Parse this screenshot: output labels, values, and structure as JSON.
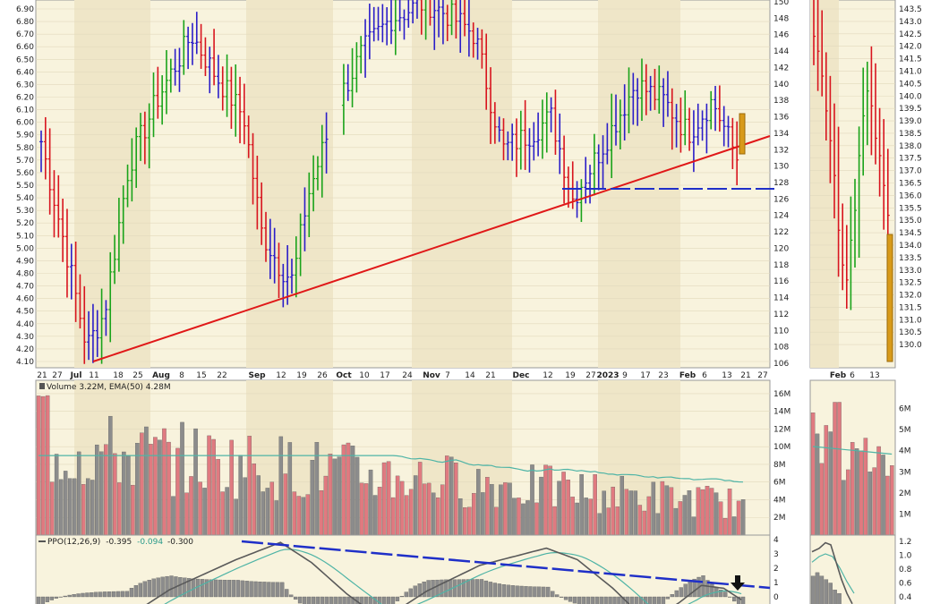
{
  "chart_data": [
    {
      "type": "ohlc",
      "panel": "price",
      "left_axis_ticks": [
        "6.90",
        "6.80",
        "6.70",
        "6.60",
        "6.50",
        "6.40",
        "6.30",
        "6.20",
        "6.10",
        "6.00",
        "5.90",
        "5.80",
        "5.70",
        "5.60",
        "5.50",
        "5.40",
        "5.30",
        "5.20",
        "5.10",
        "5.00",
        "4.90",
        "4.80",
        "4.70",
        "4.60",
        "4.50",
        "4.40",
        "4.30",
        "4.20",
        "4.10"
      ],
      "right_axis_ticks": [
        "150",
        "148",
        "146",
        "144",
        "142",
        "140",
        "138",
        "136",
        "134",
        "132",
        "130",
        "128",
        "126",
        "124",
        "122",
        "120",
        "118",
        "116",
        "114",
        "112",
        "110",
        "108",
        "106"
      ],
      "ylim_left": [
        4.1,
        6.9
      ],
      "ylim_right": [
        106,
        150
      ],
      "x_labels": [
        "21",
        "27",
        "Jul",
        "11",
        "18",
        "25",
        "Aug",
        "8",
        "15",
        "22",
        "Sep",
        "12",
        "19",
        "26",
        "Oct",
        "10",
        "17",
        "24",
        "Nov",
        "7",
        "14",
        "21",
        "Dec",
        "12",
        "19",
        "27",
        "2023",
        "9",
        "17",
        "23",
        "Feb",
        "6",
        "13",
        "21",
        "27"
      ],
      "colors": {
        "up": "#1aa31a",
        "down": "#d8141e",
        "neutral": "#2a1dc8",
        "trendline": "#e01818",
        "support": "#1f2fc8",
        "highlight": "#d89a1a"
      },
      "annotations": {
        "trendline": "rising",
        "support_level": 125
      }
    },
    {
      "type": "ohlc",
      "panel": "price-detail",
      "right_axis_ticks": [
        "143.5",
        "143.0",
        "142.5",
        "142.0",
        "141.5",
        "141.0",
        "140.5",
        "140.0",
        "139.5",
        "139.0",
        "138.5",
        "138.0",
        "137.5",
        "137.0",
        "136.5",
        "136.0",
        "135.5",
        "135.0",
        "134.5",
        "134.0",
        "133.5",
        "133.0",
        "132.5",
        "132.0",
        "131.5",
        "131.0",
        "130.5",
        "130.0"
      ],
      "ylim": [
        129.5,
        143.5
      ],
      "x_labels": [
        "Feb",
        "6",
        "13"
      ]
    },
    {
      "type": "bar",
      "panel": "volume",
      "legend": "Volume 3.22M, EMA(50) 4.28M",
      "right_axis_ticks": [
        "16M",
        "14M",
        "12M",
        "10M",
        "8M",
        "6M",
        "4M",
        "2M"
      ],
      "ylim": [
        0,
        16
      ],
      "unit": "M",
      "colors": {
        "up": "#e07a80",
        "down": "#8c8c8c",
        "ema": "#4fb4a6"
      }
    },
    {
      "type": "bar",
      "panel": "volume-detail",
      "right_axis_ticks": [
        "6M",
        "5M",
        "4M",
        "3M",
        "2M",
        "1M"
      ],
      "ylim": [
        0,
        7
      ]
    },
    {
      "type": "line",
      "panel": "ppo",
      "legend_name": "PPO(12,26,9)",
      "legend_value_1": "-0.395",
      "legend_value_2": "-0.094",
      "legend_value_3": "-0.300",
      "right_axis_ticks": [
        "4",
        "3",
        "2",
        "1",
        "0"
      ],
      "ylim": [
        -0.5,
        4.2
      ],
      "colors": {
        "ppo": "#5a5a5a",
        "signal": "#4fb4a6",
        "histogram": "#8c8c8c",
        "trendline": "#1f2fc8"
      }
    },
    {
      "type": "line",
      "panel": "ppo-detail",
      "right_axis_ticks": [
        "1.2",
        "1.0",
        "0.8",
        "0.6",
        "0.4"
      ],
      "ylim": [
        0.3,
        1.3
      ]
    }
  ]
}
